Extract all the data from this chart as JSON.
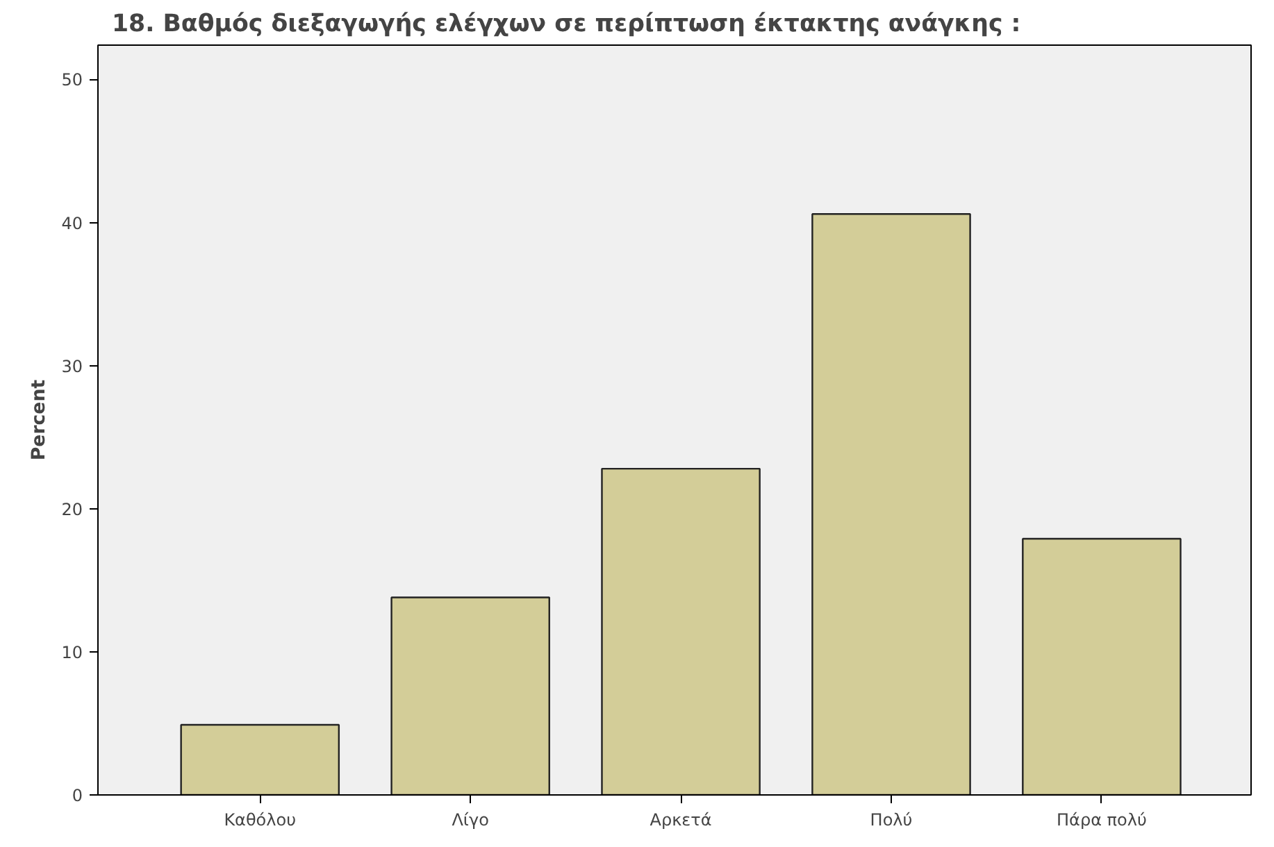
{
  "chart_data": {
    "type": "bar",
    "title": "18. Βαθμός διεξαγωγής ελέγχων σε περίπτωση έκτακτης ανάγκης :",
    "ylabel": "Percent",
    "categories": [
      "Καθόλου",
      "Λίγο",
      "Αρκετά",
      "Πολύ",
      "Πάρα πολύ"
    ],
    "values": [
      4.9,
      13.8,
      22.8,
      40.6,
      17.9
    ],
    "color": "#d3cd98",
    "ylim": [
      0,
      52.4
    ],
    "yticks": [
      0,
      10,
      20,
      30,
      40,
      50
    ],
    "grid": false
  }
}
